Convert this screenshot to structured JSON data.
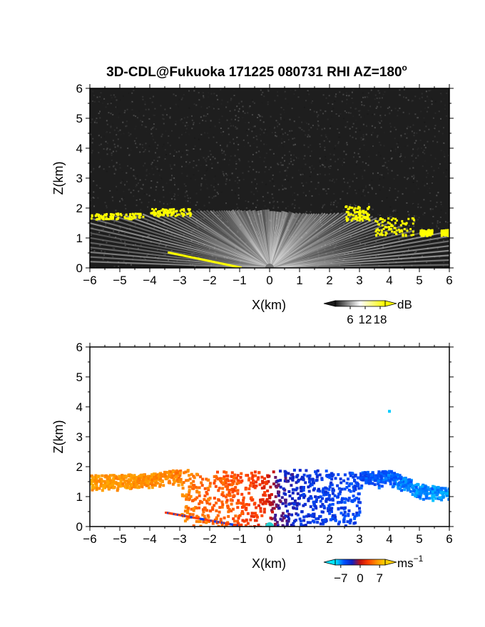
{
  "figure": {
    "title": "3D-CDL@Fukuoka 171225 080731 RHI AZ=180",
    "title_superscript": "o"
  },
  "chart_data": [
    {
      "type": "heatmap",
      "panel": "reflectivity",
      "xlabel": "X(km)",
      "ylabel": "Z(km)",
      "xlim": [
        -6,
        6
      ],
      "ylim": [
        0,
        6
      ],
      "xticks": [
        -6,
        -5,
        -4,
        -3,
        -2,
        -1,
        0,
        1,
        2,
        3,
        4,
        5,
        6
      ],
      "yticks": [
        0,
        1,
        2,
        3,
        4,
        5,
        6
      ],
      "grid": false,
      "colorbar": {
        "label": "dB",
        "ticks": [
          6,
          12,
          18
        ],
        "range": [
          0,
          20
        ],
        "colors": [
          "#1a1a1a",
          "#ffffff",
          "#ffff00"
        ]
      },
      "echo_top_profile": {
        "x": [
          -6,
          -5,
          -4,
          -3,
          -2.5,
          -2,
          -1,
          0,
          1,
          2,
          3,
          4,
          5,
          6
        ],
        "z": [
          1.7,
          1.75,
          1.8,
          1.85,
          1.9,
          1.9,
          1.9,
          1.9,
          1.8,
          1.8,
          1.85,
          1.5,
          1.2,
          1.2
        ]
      },
      "high_value_regions": [
        {
          "x": [
            -6.0,
            -4.2
          ],
          "z": [
            1.65,
            1.85
          ],
          "value": 18
        },
        {
          "x": [
            -4.0,
            -2.6
          ],
          "z": [
            1.75,
            2.0
          ],
          "value": 18
        },
        {
          "x": [
            2.5,
            3.3
          ],
          "z": [
            1.6,
            2.1
          ],
          "value": 18
        },
        {
          "x": [
            3.5,
            4.8
          ],
          "z": [
            1.1,
            1.7
          ],
          "value": 18
        },
        {
          "x": [
            5.0,
            5.4
          ],
          "z": [
            1.1,
            1.3
          ],
          "value": 18
        },
        {
          "x": [
            5.7,
            6.0
          ],
          "z": [
            1.1,
            1.3
          ],
          "value": 18
        },
        {
          "x": [
            -3.4,
            -1.0
          ],
          "z": [
            0.0,
            0.5
          ],
          "value": 18
        }
      ]
    },
    {
      "type": "heatmap",
      "panel": "doppler_velocity",
      "xlabel": "X(km)",
      "ylabel": "Z(km)",
      "xlim": [
        -6,
        6
      ],
      "ylim": [
        0,
        6
      ],
      "xticks": [
        -6,
        -5,
        -4,
        -3,
        -2,
        -1,
        0,
        1,
        2,
        3,
        4,
        5,
        6
      ],
      "yticks": [
        0,
        1,
        2,
        3,
        4,
        5,
        6
      ],
      "grid": false,
      "colorbar": {
        "label": "ms",
        "label_superscript": "-1",
        "ticks": [
          -7,
          0,
          7
        ],
        "range": [
          -9,
          9
        ],
        "colors": [
          "#00e5ff",
          "#0050ff",
          "#1020c0",
          "#c01010",
          "#ff4000",
          "#ff9000",
          "#ffd000"
        ]
      },
      "velocity_by_x": {
        "x": [
          -6,
          -4,
          -3,
          -2,
          -1,
          -0.2,
          0.2,
          1,
          2,
          3,
          4,
          5,
          6
        ],
        "v": [
          6.5,
          6,
          5.5,
          4.5,
          3.5,
          2,
          -2,
          -4,
          -5,
          -5.5,
          -6.5,
          -7,
          -7.5
        ]
      },
      "isolated_points": [
        {
          "x": 4.0,
          "z": 3.85,
          "value": -8.5
        }
      ]
    }
  ]
}
